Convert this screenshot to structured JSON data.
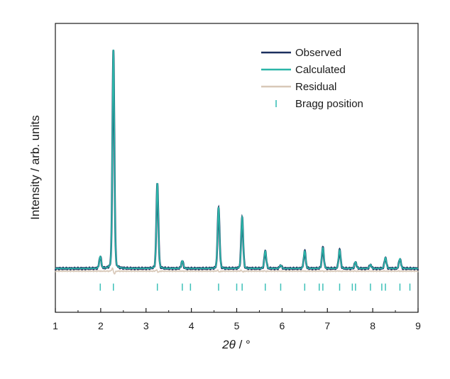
{
  "chart_data": {
    "type": "line",
    "title": "",
    "xlabel_symbol": "2θ",
    "xlabel_unit": " / °",
    "ylabel": "Intensity / arb. units",
    "xlim": [
      1,
      9
    ],
    "ylim": [
      -0.2,
      1.12
    ],
    "xticks": [
      1,
      2,
      3,
      4,
      5,
      6,
      7,
      8,
      9
    ],
    "yticks_shown": false,
    "legend_position": "top-right",
    "baseline": 0.0,
    "series": [
      {
        "name": "Observed",
        "color": "#1b2f5e",
        "style": "line"
      },
      {
        "name": "Calculated",
        "color": "#2bb5a8",
        "style": "line"
      },
      {
        "name": "Residual",
        "color": "#d8c8b8",
        "style": "line",
        "offset": -0.012
      },
      {
        "name": "Bragg position",
        "color": "#3cc0b8",
        "style": "ticks"
      }
    ],
    "peaks": [
      {
        "x": 1.99,
        "height": 0.055
      },
      {
        "x": 2.28,
        "height": 1.0
      },
      {
        "x": 3.25,
        "height": 0.39
      },
      {
        "x": 3.8,
        "height": 0.035
      },
      {
        "x": 4.6,
        "height": 0.28
      },
      {
        "x": 5.12,
        "height": 0.235
      },
      {
        "x": 5.63,
        "height": 0.08
      },
      {
        "x": 5.97,
        "height": 0.015
      },
      {
        "x": 6.5,
        "height": 0.08
      },
      {
        "x": 6.9,
        "height": 0.095
      },
      {
        "x": 7.27,
        "height": 0.085
      },
      {
        "x": 7.62,
        "height": 0.03
      },
      {
        "x": 7.95,
        "height": 0.018
      },
      {
        "x": 8.28,
        "height": 0.05
      },
      {
        "x": 8.6,
        "height": 0.045
      }
    ],
    "bragg_positions": [
      1.99,
      2.28,
      3.25,
      3.8,
      3.98,
      4.6,
      5.0,
      5.12,
      5.63,
      5.97,
      6.5,
      6.82,
      6.9,
      7.27,
      7.55,
      7.62,
      7.95,
      8.2,
      8.28,
      8.6,
      8.82
    ]
  }
}
